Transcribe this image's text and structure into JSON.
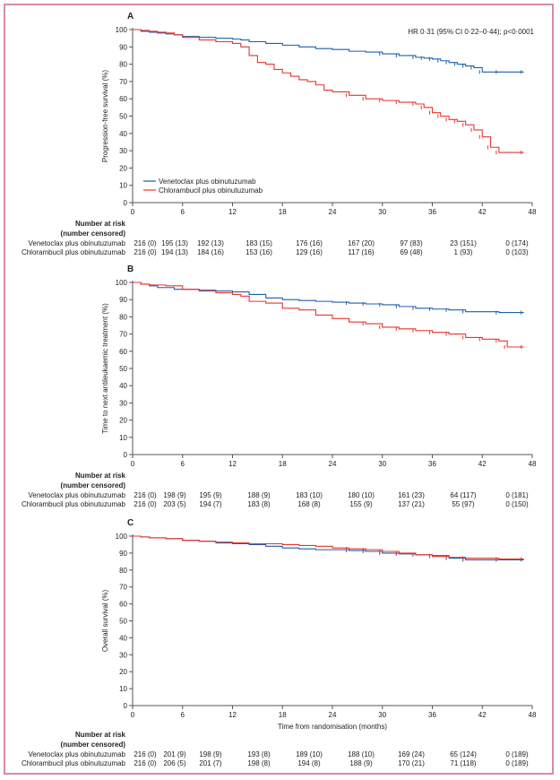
{
  "colors": {
    "venetoclax": "#1f5fa8",
    "chlorambucil": "#e8352f",
    "axis": "#555555",
    "frame": "#d98aa6"
  },
  "chart_data": [
    {
      "type": "line",
      "panel": "A",
      "ylabel": "Progression-free survival (%)",
      "xlabel": "",
      "xlim": [
        0,
        48
      ],
      "ylim": [
        0,
        100
      ],
      "xticks": [
        "0",
        "6",
        "12",
        "18",
        "24",
        "30",
        "36",
        "42",
        "48"
      ],
      "yticks": [
        "0",
        "10",
        "20",
        "30",
        "40",
        "50",
        "60",
        "70",
        "80",
        "90",
        "100"
      ],
      "annotation": "HR 0·31 (95% CI 0·22–0·44); p<0·0001",
      "legend": {
        "position": "bottom-left",
        "entries": [
          "Venetoclax plus obinutuzumab",
          "Chlorambucil plus obinutuzumab"
        ]
      },
      "series": [
        {
          "name": "Venetoclax plus obinutuzumab",
          "x": [
            0,
            1,
            2,
            3,
            4,
            5,
            6,
            8,
            10,
            12,
            13,
            14,
            16,
            18,
            20,
            22,
            24,
            26,
            28,
            30,
            32,
            34,
            35,
            36,
            37,
            38,
            39,
            40,
            41,
            42,
            44,
            47
          ],
          "y": [
            100,
            99,
            98.5,
            98,
            97.5,
            97,
            96,
            95.5,
            95,
            94.5,
            94,
            93,
            92,
            91,
            90,
            89,
            88.5,
            87.5,
            87,
            86,
            85,
            84,
            83.5,
            83,
            82,
            81,
            80,
            79,
            78,
            75.5,
            75.5,
            75.5
          ]
        },
        {
          "name": "Chlorambucil plus obinutuzumab",
          "x": [
            0,
            1,
            2,
            3,
            4,
            5,
            6,
            8,
            10,
            12,
            13,
            14,
            15,
            16,
            17,
            18,
            19,
            20,
            21,
            22,
            23,
            24,
            26,
            28,
            30,
            32,
            34,
            35,
            36,
            37,
            38,
            39,
            40,
            41,
            42,
            43,
            44,
            47
          ],
          "y": [
            100,
            99.5,
            99,
            98.5,
            98,
            97,
            95.5,
            94,
            93,
            92,
            90,
            85,
            81,
            80,
            77,
            75,
            73,
            71,
            70,
            68,
            65,
            64,
            62,
            60,
            59,
            58,
            57,
            55,
            52,
            50,
            48,
            47,
            45,
            42,
            38,
            32,
            29,
            29
          ]
        }
      ],
      "risk_table": {
        "header": [
          "Number at risk",
          "(number censored)"
        ],
        "rows": [
          {
            "label": "Venetoclax plus obinutuzumab",
            "values": [
              "216 (0)",
              "195 (13)",
              "192 (13)",
              "183 (15)",
              "176 (16)",
              "167 (20)",
              "97 (83)",
              "23 (151)",
              "0 (174)"
            ]
          },
          {
            "label": "Chlorambucil plus obinutuzumab",
            "values": [
              "216 (0)",
              "194 (13)",
              "184 (16)",
              "153 (16)",
              "129 (16)",
              "117 (16)",
              "69 (48)",
              "1 (93)",
              "0 (103)"
            ]
          }
        ]
      }
    },
    {
      "type": "line",
      "panel": "B",
      "ylabel": "Time to next antileukaemic treatment (%)",
      "xlabel": "",
      "xlim": [
        0,
        48
      ],
      "ylim": [
        0,
        100
      ],
      "xticks": [
        "0",
        "6",
        "12",
        "18",
        "24",
        "30",
        "36",
        "42",
        "48"
      ],
      "yticks": [
        "0",
        "10",
        "20",
        "30",
        "40",
        "50",
        "60",
        "70",
        "80",
        "90",
        "100"
      ],
      "series": [
        {
          "name": "Venetoclax plus obinutuzumab",
          "x": [
            0,
            1,
            2,
            3,
            5,
            8,
            10,
            12,
            14,
            16,
            18,
            20,
            22,
            24,
            26,
            28,
            30,
            32,
            34,
            36,
            38,
            40,
            44,
            47
          ],
          "y": [
            100,
            99,
            98,
            97,
            96,
            95.5,
            95,
            94.5,
            93,
            91,
            90,
            89.5,
            89,
            88.5,
            88,
            87.5,
            87,
            86,
            85,
            84.5,
            84,
            83,
            82.5,
            82.5
          ]
        },
        {
          "name": "Chlorambucil plus obinutuzumab",
          "x": [
            0,
            1,
            2,
            4,
            6,
            8,
            10,
            12,
            13,
            14,
            16,
            18,
            20,
            22,
            24,
            26,
            28,
            30,
            32,
            34,
            36,
            38,
            40,
            42,
            44,
            45,
            47
          ],
          "y": [
            100,
            99,
            98.5,
            98,
            96,
            95,
            94,
            93,
            92,
            89,
            88,
            85,
            84,
            81,
            79,
            77,
            76,
            74,
            73,
            72,
            71,
            70,
            68,
            67,
            66,
            62.5,
            62.5
          ]
        }
      ],
      "risk_table": {
        "header": [
          "Number at risk",
          "(number censored)"
        ],
        "rows": [
          {
            "label": "Venetoclax plus obinutuzumab",
            "values": [
              "216 (0)",
              "198 (9)",
              "195 (9)",
              "188 (9)",
              "183 (10)",
              "180 (10)",
              "161 (23)",
              "64 (117)",
              "0 (181)"
            ]
          },
          {
            "label": "Chlorambucil plus obinutuzumab",
            "values": [
              "216 (0)",
              "203 (5)",
              "194 (7)",
              "183 (8)",
              "168 (8)",
              "155 (9)",
              "137 (21)",
              "55 (97)",
              "0 (150)"
            ]
          }
        ]
      }
    },
    {
      "type": "line",
      "panel": "C",
      "ylabel": "Overall survival (%)",
      "xlabel": "Time from randomisation (months)",
      "xlim": [
        0,
        48
      ],
      "ylim": [
        0,
        100
      ],
      "xticks": [
        "0",
        "6",
        "12",
        "18",
        "24",
        "30",
        "36",
        "42",
        "48"
      ],
      "yticks": [
        "0",
        "10",
        "20",
        "30",
        "40",
        "50",
        "60",
        "70",
        "80",
        "90",
        "100"
      ],
      "series": [
        {
          "name": "Venetoclax plus obinutuzumab",
          "x": [
            0,
            1,
            2,
            4,
            6,
            8,
            10,
            12,
            14,
            16,
            18,
            20,
            22,
            24,
            26,
            28,
            30,
            32,
            34,
            36,
            38,
            40,
            44,
            47
          ],
          "y": [
            100,
            99.5,
            99,
            98.5,
            97.5,
            97,
            96,
            95.5,
            95,
            94,
            93,
            92.5,
            92,
            92,
            91.5,
            91,
            90,
            89.5,
            89,
            88.5,
            87,
            86,
            86,
            86
          ]
        },
        {
          "name": "Chlorambucil plus obinutuzumab",
          "x": [
            0,
            1,
            2,
            4,
            6,
            8,
            10,
            12,
            14,
            16,
            18,
            20,
            22,
            24,
            26,
            28,
            30,
            32,
            34,
            36,
            38,
            40,
            44,
            47
          ],
          "y": [
            100,
            99.5,
            99,
            98.5,
            97.5,
            97,
            96.5,
            96,
            95.5,
            95.5,
            95,
            94.5,
            94,
            93,
            92.5,
            92,
            91,
            90,
            89,
            88,
            87.5,
            87,
            86.5,
            86.5
          ]
        }
      ],
      "risk_table": {
        "header": [
          "Number at risk",
          "(number censored)"
        ],
        "rows": [
          {
            "label": "Venetoclax plus obinutuzumab",
            "values": [
              "216 (0)",
              "201 (9)",
              "198 (9)",
              "193 (8)",
              "189 (10)",
              "188 (10)",
              "169 (24)",
              "65 (124)",
              "0 (189)"
            ]
          },
          {
            "label": "Chlorambucil plus obinutuzumab",
            "values": [
              "216 (0)",
              "206 (5)",
              "201 (7)",
              "198 (8)",
              "194 (8)",
              "188 (9)",
              "170 (21)",
              "71 (118)",
              "0 (189)"
            ]
          }
        ]
      }
    }
  ]
}
